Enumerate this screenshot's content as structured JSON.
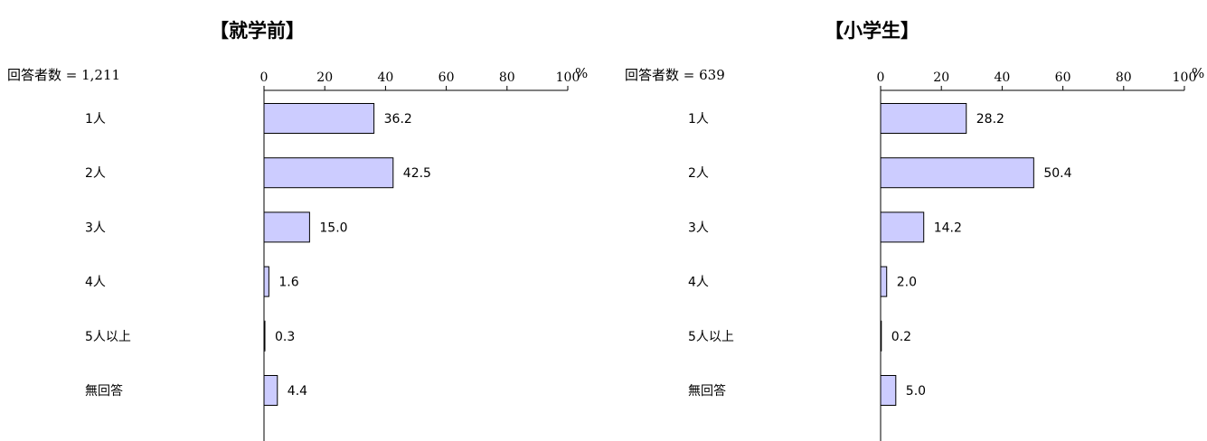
{
  "chart_data": [
    {
      "type": "bar",
      "orientation": "horizontal",
      "title": "【就学前】",
      "respondents_label": "回答者数 = 1,211",
      "unit": "%",
      "xlim": [
        0,
        100
      ],
      "ticks": [
        0,
        20,
        40,
        60,
        80,
        100
      ],
      "categories": [
        "1人",
        "2人",
        "3人",
        "4人",
        "5人以上",
        "無回答"
      ],
      "values": [
        36.2,
        42.5,
        15.0,
        1.6,
        0.3,
        4.4
      ],
      "value_labels": [
        "36.2",
        "42.5",
        "15.0",
        "1.6",
        "0.3",
        "4.4"
      ],
      "grid": false,
      "bar_color": "#ccccff",
      "bar_edge_color": "#000000"
    },
    {
      "type": "bar",
      "orientation": "horizontal",
      "title": "【小学生】",
      "respondents_label": "回答者数 = 639",
      "unit": "%",
      "xlim": [
        0,
        100
      ],
      "ticks": [
        0,
        20,
        40,
        60,
        80,
        100
      ],
      "categories": [
        "1人",
        "2人",
        "3人",
        "4人",
        "5人以上",
        "無回答"
      ],
      "values": [
        28.2,
        50.4,
        14.2,
        2.0,
        0.2,
        5.0
      ],
      "value_labels": [
        "28.2",
        "50.4",
        "14.2",
        "2.0",
        "0.2",
        "5.0"
      ],
      "grid": false,
      "bar_color": "#ccccff",
      "bar_edge_color": "#000000"
    }
  ]
}
